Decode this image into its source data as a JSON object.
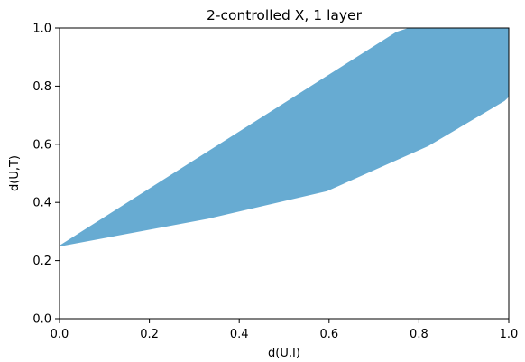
{
  "chart_data": {
    "type": "area",
    "title": "2-controlled X, 1 layer",
    "xlabel": "d(U,I)",
    "ylabel": "d(U,T)",
    "xlim": [
      0.0,
      1.0
    ],
    "ylim": [
      0.0,
      1.0
    ],
    "x_ticks": [
      "0.0",
      "0.2",
      "0.4",
      "0.6",
      "0.8",
      "1.0"
    ],
    "y_ticks": [
      "0.0",
      "0.2",
      "0.4",
      "0.6",
      "0.8",
      "1.0"
    ],
    "grid": false,
    "fill_color": "#67abd2",
    "upper_boundary": [
      [
        0.0,
        0.25
      ],
      [
        0.75,
        0.985
      ],
      [
        0.78,
        1.0
      ],
      [
        1.0,
        1.0
      ]
    ],
    "lower_boundary": [
      [
        0.0,
        0.25
      ],
      [
        0.33,
        0.345
      ],
      [
        0.595,
        0.44
      ],
      [
        0.82,
        0.595
      ],
      [
        0.99,
        0.75
      ],
      [
        1.0,
        0.765
      ]
    ]
  }
}
